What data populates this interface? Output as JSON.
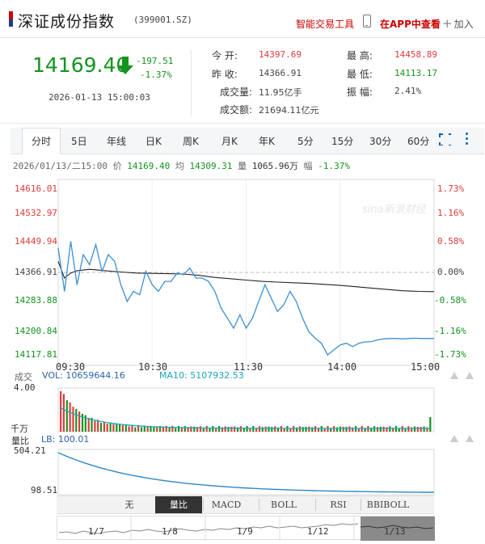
{
  "header": {
    "title": "深证成份指数",
    "code": "(399001.SZ)",
    "tool_link": "智能交易工具",
    "app_link": "在APP中查看",
    "add_label": "加入"
  },
  "quote": {
    "price": "14169.40",
    "change": "-197.51",
    "change_pct": "-1.37%",
    "datetime": "2026-01-13  15:00:03"
  },
  "stats": [
    {
      "label": "今    开:",
      "value": "14397.69",
      "color": "red"
    },
    {
      "label": "最    高:",
      "value": "14458.89",
      "color": "red"
    },
    {
      "label": "昨    收:",
      "value": "14366.91",
      "color": "dark"
    },
    {
      "label": "最    低:",
      "value": "14113.17",
      "color": "green"
    },
    {
      "label": "成交量:",
      "value": "11.95亿手",
      "color": "dark"
    },
    {
      "label": "振    幅:",
      "value": "2.41%",
      "color": "dark"
    },
    {
      "label": "成交额:",
      "value": "21694.11亿元",
      "color": "dark"
    }
  ],
  "tabs": [
    "分时",
    "5日",
    "年线",
    "日K",
    "周K",
    "月K",
    "年K",
    "5分",
    "15分",
    "30分",
    "60分"
  ],
  "active_tab": "分时",
  "quote_line": {
    "date": "2026/01/13/二15:00",
    "price_label": "价",
    "price": "14169.40",
    "avg_label": "均",
    "avg": "14309.31",
    "vol_label": "量",
    "vol": "1065.96万",
    "amp_label": "幅",
    "amp": "-1.37%"
  },
  "watermark": "sina新浪财经",
  "chart_data": {
    "type": "line",
    "title": "",
    "x_ticks": [
      "09:30",
      "10:30",
      "11:30",
      "14:00",
      "15:00"
    ],
    "y_ticks": [
      "14616.01",
      "14532.97",
      "14449.94",
      "14366.91",
      "14283.88",
      "14200.84",
      "14117.81"
    ],
    "pct_ticks": [
      "1.73%",
      "1.16%",
      "0.58%",
      "0.00%",
      "-0.58%",
      "-1.16%",
      "-1.73%"
    ],
    "ylim": [
      14117.81,
      14616.01
    ],
    "prev_close": 14366.91,
    "series": [
      {
        "name": "价",
        "color": "#3b8fd4",
        "x": [
          0,
          4,
          8,
          12,
          16,
          20,
          24,
          28,
          32,
          36,
          40,
          44,
          48,
          52,
          56,
          60,
          64,
          68,
          72,
          76,
          80,
          84,
          88,
          92,
          96,
          100,
          104,
          108,
          112,
          116,
          120,
          124,
          128,
          132,
          136,
          140,
          144,
          148,
          152,
          156,
          160,
          164,
          168,
          172,
          176,
          180,
          184,
          188,
          192,
          196,
          200,
          204,
          208,
          212,
          216,
          220,
          224,
          228,
          232,
          236,
          240
        ],
        "values": [
          14440,
          14310,
          14460,
          14330,
          14420,
          14390,
          14450,
          14370,
          14420,
          14400,
          14330,
          14280,
          14310,
          14300,
          14370,
          14330,
          14310,
          14340,
          14340,
          14365,
          14360,
          14380,
          14350,
          14350,
          14340,
          14310,
          14260,
          14230,
          14200,
          14240,
          14200,
          14230,
          14280,
          14330,
          14290,
          14250,
          14270,
          14310,
          14280,
          14230,
          14190,
          14170,
          14155,
          14120,
          14135,
          14150,
          14155,
          14145,
          14155,
          14159,
          14160,
          14165,
          14168,
          14169,
          14169,
          14168,
          14169,
          14170,
          14169,
          14169,
          14169.4
        ]
      },
      {
        "name": "均",
        "color": "#222222",
        "x": [
          0,
          4,
          8,
          12,
          20,
          30,
          40,
          50,
          60,
          70,
          80,
          90,
          100,
          110,
          120,
          130,
          140,
          150,
          160,
          170,
          180,
          190,
          200,
          210,
          220,
          230,
          240
        ],
        "values": [
          14400,
          14350,
          14365,
          14372,
          14376,
          14372,
          14368,
          14365,
          14364,
          14363,
          14362,
          14358,
          14352,
          14348,
          14344,
          14340,
          14338,
          14336,
          14334,
          14331,
          14328,
          14324,
          14320,
          14316,
          14312,
          14310,
          14309.31
        ]
      }
    ],
    "volume": {
      "label": "成交",
      "vol_label": "VOL: 10659644.16",
      "ma10_label": "MA10: 5107932.53",
      "max_label": "4.00",
      "unit_label": "千万"
    },
    "ratio": {
      "label": "量比",
      "lb_label": "LB: 100.01",
      "max_label": "504.21",
      "min_label": "98.51",
      "start": 504.21,
      "end": 100.01
    }
  },
  "indicators": [
    "无",
    "量比",
    "MACD",
    "BOLL",
    "RSI",
    "BBIBOLL"
  ],
  "active_indicator": "量比",
  "nav_dates": [
    "1/7",
    "1/8",
    "1/9",
    "1/12",
    "1/13"
  ],
  "colors": {
    "up": "#e03b3b",
    "down": "#13941f",
    "accent": "#1d3f7e",
    "price_line": "#3b8fd4"
  }
}
